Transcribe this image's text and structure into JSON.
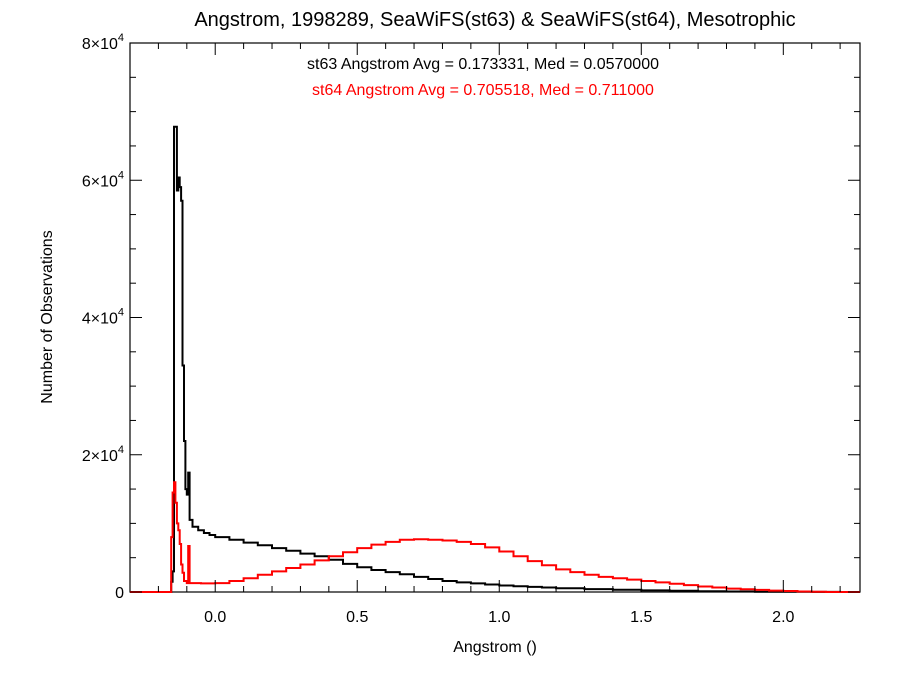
{
  "chart_data": {
    "type": "line",
    "title": "Angstrom, 1998289, SeaWiFS(st63) & SeaWiFS(st64), Mesotrophic",
    "xlabel": "Angstrom ()",
    "ylabel": "Number of Observations",
    "xlim": [
      -0.3,
      2.27
    ],
    "ylim": [
      0,
      80000
    ],
    "x_ticks": [
      0.0,
      0.5,
      1.0,
      1.5,
      2.0
    ],
    "x_tick_labels": [
      "0.0",
      "0.5",
      "1.0",
      "1.5",
      "2.0"
    ],
    "y_ticks": [
      0,
      20000,
      40000,
      60000,
      80000
    ],
    "y_tick_labels": [
      {
        "mantissa": "0",
        "exp": ""
      },
      {
        "mantissa": "2×10",
        "exp": "4"
      },
      {
        "mantissa": "4×10",
        "exp": "4"
      },
      {
        "mantissa": "6×10",
        "exp": "4"
      },
      {
        "mantissa": "8×10",
        "exp": "4"
      }
    ],
    "grid": false,
    "annotations": [
      {
        "text": "st63 Angstrom Avg = 0.173331, Med = 0.0570000",
        "color": "#000000"
      },
      {
        "text": "st64 Angstrom Avg = 0.705518, Med = 0.711000",
        "color": "#ff0000"
      }
    ],
    "series": [
      {
        "color": "#000000",
        "points": [
          [
            -0.3,
            0
          ],
          [
            -0.165,
            0
          ],
          [
            -0.155,
            1500
          ],
          [
            -0.15,
            3000
          ],
          [
            -0.145,
            67800
          ],
          [
            -0.135,
            58500
          ],
          [
            -0.13,
            60400
          ],
          [
            -0.125,
            59000
          ],
          [
            -0.12,
            57000
          ],
          [
            -0.115,
            33000
          ],
          [
            -0.11,
            22000
          ],
          [
            -0.105,
            15000
          ],
          [
            -0.1,
            14200
          ],
          [
            -0.095,
            17400
          ],
          [
            -0.09,
            10500
          ],
          [
            -0.08,
            9500
          ],
          [
            -0.06,
            9000
          ],
          [
            -0.04,
            8600
          ],
          [
            -0.02,
            8300
          ],
          [
            0.0,
            8000
          ],
          [
            0.05,
            7600
          ],
          [
            0.1,
            7200
          ],
          [
            0.15,
            6800
          ],
          [
            0.2,
            6400
          ],
          [
            0.25,
            6000
          ],
          [
            0.3,
            5600
          ],
          [
            0.35,
            5200
          ],
          [
            0.4,
            4700
          ],
          [
            0.45,
            4100
          ],
          [
            0.5,
            3600
          ],
          [
            0.55,
            3200
          ],
          [
            0.6,
            2900
          ],
          [
            0.65,
            2600
          ],
          [
            0.7,
            2200
          ],
          [
            0.75,
            1900
          ],
          [
            0.8,
            1600
          ],
          [
            0.85,
            1400
          ],
          [
            0.9,
            1250
          ],
          [
            0.95,
            1100
          ],
          [
            1.0,
            950
          ],
          [
            1.05,
            850
          ],
          [
            1.1,
            750
          ],
          [
            1.15,
            650
          ],
          [
            1.2,
            550
          ],
          [
            1.3,
            420
          ],
          [
            1.4,
            320
          ],
          [
            1.5,
            240
          ],
          [
            1.6,
            180
          ],
          [
            1.7,
            120
          ],
          [
            1.8,
            80
          ],
          [
            1.9,
            50
          ],
          [
            2.0,
            30
          ],
          [
            2.1,
            15
          ],
          [
            2.2,
            0
          ],
          [
            2.27,
            0
          ]
        ]
      },
      {
        "color": "#ff0000",
        "points": [
          [
            -0.3,
            0
          ],
          [
            -0.165,
            0
          ],
          [
            -0.155,
            8000
          ],
          [
            -0.15,
            14500
          ],
          [
            -0.145,
            16000
          ],
          [
            -0.14,
            13000
          ],
          [
            -0.135,
            10000
          ],
          [
            -0.13,
            9000
          ],
          [
            -0.125,
            7000
          ],
          [
            -0.12,
            4000
          ],
          [
            -0.115,
            2800
          ],
          [
            -0.11,
            1600
          ],
          [
            -0.1,
            1300
          ],
          [
            -0.095,
            6700
          ],
          [
            -0.09,
            1300
          ],
          [
            -0.05,
            1250
          ],
          [
            0.0,
            1300
          ],
          [
            0.05,
            1600
          ],
          [
            0.1,
            2000
          ],
          [
            0.15,
            2500
          ],
          [
            0.2,
            3000
          ],
          [
            0.25,
            3500
          ],
          [
            0.3,
            4000
          ],
          [
            0.35,
            4600
          ],
          [
            0.4,
            5200
          ],
          [
            0.45,
            5800
          ],
          [
            0.5,
            6400
          ],
          [
            0.55,
            6900
          ],
          [
            0.6,
            7300
          ],
          [
            0.65,
            7600
          ],
          [
            0.7,
            7700
          ],
          [
            0.75,
            7600
          ],
          [
            0.8,
            7500
          ],
          [
            0.85,
            7300
          ],
          [
            0.9,
            7000
          ],
          [
            0.95,
            6500
          ],
          [
            1.0,
            5900
          ],
          [
            1.05,
            5200
          ],
          [
            1.1,
            4500
          ],
          [
            1.15,
            3900
          ],
          [
            1.2,
            3300
          ],
          [
            1.25,
            2900
          ],
          [
            1.3,
            2500
          ],
          [
            1.35,
            2200
          ],
          [
            1.4,
            2000
          ],
          [
            1.45,
            1800
          ],
          [
            1.5,
            1600
          ],
          [
            1.55,
            1400
          ],
          [
            1.6,
            1200
          ],
          [
            1.65,
            1000
          ],
          [
            1.7,
            800
          ],
          [
            1.75,
            650
          ],
          [
            1.8,
            500
          ],
          [
            1.85,
            400
          ],
          [
            1.9,
            300
          ],
          [
            1.95,
            200
          ],
          [
            2.0,
            150
          ],
          [
            2.05,
            80
          ],
          [
            2.1,
            40
          ],
          [
            2.15,
            0
          ],
          [
            2.27,
            0
          ]
        ]
      }
    ]
  }
}
